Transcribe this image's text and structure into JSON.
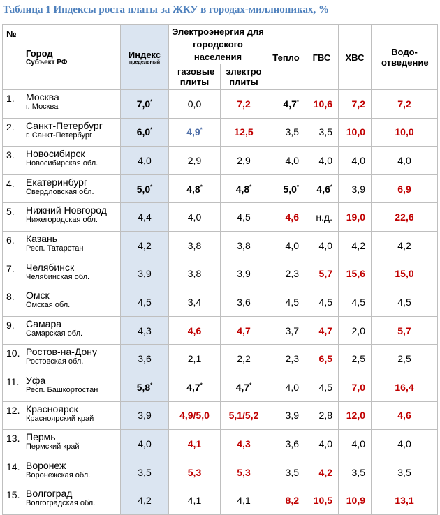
{
  "title": "Таблица 1 Индексы роста платы за ЖКУ в городах-миллиониках, %",
  "header": {
    "num": "№",
    "city": "Город",
    "region": "Субъект РФ",
    "index": "Индекс",
    "index_sub": "предельный",
    "electro": "Электроэнергия для городского населения",
    "gas": "газовые плиты",
    "elec": "электро плиты",
    "heat": "Тепло",
    "gvs": "ГВС",
    "hvs": "ХВС",
    "water": "Водо-отведение"
  },
  "colors": {
    "title": "#4f81bd",
    "red": "#c00000",
    "blue": "#4f6fa8",
    "index_bg": "#dbe5f1"
  },
  "rows": [
    {
      "n": "1.",
      "city": "Москва",
      "region": "г. Москва",
      "c": [
        [
          "7,0",
          "b",
          "*"
        ],
        [
          "0,0",
          "n",
          ""
        ],
        [
          "7,2",
          "r",
          ""
        ],
        [
          "4,7",
          "b",
          "*"
        ],
        [
          "10,6",
          "r",
          ""
        ],
        [
          "7,2",
          "r",
          ""
        ],
        [
          "7,2",
          "r",
          ""
        ]
      ]
    },
    {
      "n": "2.",
      "city": "Санкт-Петербург",
      "region": "г. Санкт-Петербург",
      "c": [
        [
          "6,0",
          "b",
          "*"
        ],
        [
          "4,9",
          "bl",
          "*"
        ],
        [
          "12,5",
          "r",
          ""
        ],
        [
          "3,5",
          "n",
          ""
        ],
        [
          "3,5",
          "n",
          ""
        ],
        [
          "10,0",
          "r",
          ""
        ],
        [
          "10,0",
          "r",
          ""
        ]
      ]
    },
    {
      "n": "3.",
      "city": "Новосибирск",
      "region": "Новосибирская обл.",
      "c": [
        [
          "4,0",
          "n",
          ""
        ],
        [
          "2,9",
          "n",
          ""
        ],
        [
          "2,9",
          "n",
          ""
        ],
        [
          "4,0",
          "n",
          ""
        ],
        [
          "4,0",
          "n",
          ""
        ],
        [
          "4,0",
          "n",
          ""
        ],
        [
          "4,0",
          "n",
          ""
        ]
      ]
    },
    {
      "n": "4.",
      "city": "Екатеринбург",
      "region": "Свердловская обл.",
      "c": [
        [
          "5,0",
          "b",
          "*"
        ],
        [
          "4,8",
          "b",
          "*"
        ],
        [
          "4,8",
          "b",
          "*"
        ],
        [
          "5,0",
          "b",
          "*"
        ],
        [
          "4,6",
          "b",
          "*"
        ],
        [
          "3,9",
          "n",
          ""
        ],
        [
          "6,9",
          "r",
          ""
        ]
      ]
    },
    {
      "n": "5.",
      "city": "Нижний Новгород",
      "region": "Нижегородская обл.",
      "c": [
        [
          "4,4",
          "n",
          ""
        ],
        [
          "4,0",
          "n",
          ""
        ],
        [
          "4,5",
          "n",
          ""
        ],
        [
          "4,6",
          "r",
          ""
        ],
        [
          "н.д.",
          "n",
          ""
        ],
        [
          "19,0",
          "r",
          ""
        ],
        [
          "22,6",
          "r",
          ""
        ]
      ]
    },
    {
      "n": "6.",
      "city": "Казань",
      "region": "Респ. Татарстан",
      "c": [
        [
          "4,2",
          "n",
          ""
        ],
        [
          "3,8",
          "n",
          ""
        ],
        [
          "3,8",
          "n",
          ""
        ],
        [
          "4,0",
          "n",
          ""
        ],
        [
          "4,0",
          "n",
          ""
        ],
        [
          "4,2",
          "n",
          ""
        ],
        [
          "4,2",
          "n",
          ""
        ]
      ]
    },
    {
      "n": "7.",
      "city": "Челябинск",
      "region": "Челябинская обл.",
      "c": [
        [
          "3,9",
          "n",
          ""
        ],
        [
          "3,8",
          "n",
          ""
        ],
        [
          "3,9",
          "n",
          ""
        ],
        [
          "2,3",
          "n",
          ""
        ],
        [
          "5,7",
          "r",
          ""
        ],
        [
          "15,6",
          "r",
          ""
        ],
        [
          "15,0",
          "r",
          ""
        ]
      ]
    },
    {
      "n": "8.",
      "city": "Омск",
      "region": "Омская обл.",
      "c": [
        [
          "4,5",
          "n",
          ""
        ],
        [
          "3,4",
          "n",
          ""
        ],
        [
          "3,6",
          "n",
          ""
        ],
        [
          "4,5",
          "n",
          ""
        ],
        [
          "4,5",
          "n",
          ""
        ],
        [
          "4,5",
          "n",
          ""
        ],
        [
          "4,5",
          "n",
          ""
        ]
      ]
    },
    {
      "n": "9.",
      "city": "Самара",
      "region": "Самарская обл.",
      "c": [
        [
          "4,3",
          "n",
          ""
        ],
        [
          "4,6",
          "r",
          ""
        ],
        [
          "4,7",
          "r",
          ""
        ],
        [
          "3,7",
          "n",
          ""
        ],
        [
          "4,7",
          "r",
          ""
        ],
        [
          "2,0",
          "n",
          ""
        ],
        [
          "5,7",
          "r",
          ""
        ]
      ]
    },
    {
      "n": "10.",
      "city": "Ростов-на-Дону",
      "region": "Ростовская обл.",
      "c": [
        [
          "3,6",
          "n",
          ""
        ],
        [
          "2,1",
          "n",
          ""
        ],
        [
          "2,2",
          "n",
          ""
        ],
        [
          "2,3",
          "n",
          ""
        ],
        [
          "6,5",
          "r",
          ""
        ],
        [
          "2,5",
          "n",
          ""
        ],
        [
          "2,5",
          "n",
          ""
        ]
      ]
    },
    {
      "n": "11.",
      "city": "Уфа",
      "region": "Респ. Башкортостан",
      "c": [
        [
          "5,8",
          "b",
          "*"
        ],
        [
          "4,7",
          "b",
          "*"
        ],
        [
          "4,7",
          "b",
          "*"
        ],
        [
          "4,0",
          "n",
          ""
        ],
        [
          "4,5",
          "n",
          ""
        ],
        [
          "7,0",
          "r",
          ""
        ],
        [
          "16,4",
          "r",
          ""
        ]
      ]
    },
    {
      "n": "12.",
      "city": "Красноярск",
      "region": "Красноярский край",
      "c": [
        [
          "3,9",
          "n",
          ""
        ],
        [
          "4,9/5,0",
          "r",
          ""
        ],
        [
          "5,1/5,2",
          "r",
          ""
        ],
        [
          "3,9",
          "n",
          ""
        ],
        [
          "2,8",
          "n",
          ""
        ],
        [
          "12,0",
          "r",
          ""
        ],
        [
          "4,6",
          "r",
          ""
        ]
      ]
    },
    {
      "n": "13.",
      "city": "Пермь",
      "region": "Пермский край",
      "c": [
        [
          "4,0",
          "n",
          ""
        ],
        [
          "4,1",
          "r",
          ""
        ],
        [
          "4,3",
          "r",
          ""
        ],
        [
          "3,6",
          "n",
          ""
        ],
        [
          "4,0",
          "n",
          ""
        ],
        [
          "4,0",
          "n",
          ""
        ],
        [
          "4,0",
          "n",
          ""
        ]
      ]
    },
    {
      "n": "14.",
      "city": "Воронеж",
      "region": "Воронежская обл.",
      "c": [
        [
          "3,5",
          "n",
          ""
        ],
        [
          "5,3",
          "r",
          ""
        ],
        [
          "5,3",
          "r",
          ""
        ],
        [
          "3,5",
          "n",
          ""
        ],
        [
          "4,2",
          "r",
          ""
        ],
        [
          "3,5",
          "n",
          ""
        ],
        [
          "3,5",
          "n",
          ""
        ]
      ]
    },
    {
      "n": "15.",
      "city": "Волгоград",
      "region": "Волгоградская обл.",
      "c": [
        [
          "4,2",
          "n",
          ""
        ],
        [
          "4,1",
          "n",
          ""
        ],
        [
          "4,1",
          "n",
          ""
        ],
        [
          "8,2",
          "r",
          ""
        ],
        [
          "10,5",
          "r",
          ""
        ],
        [
          "10,9",
          "r",
          ""
        ],
        [
          "13,1",
          "r",
          ""
        ]
      ]
    }
  ]
}
